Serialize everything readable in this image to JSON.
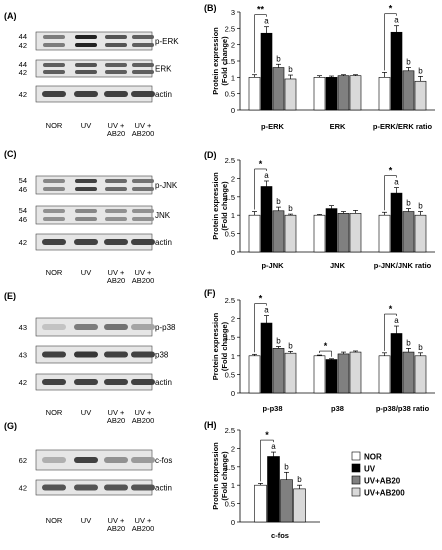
{
  "panels": {
    "A": {
      "label": "(A)",
      "mw": [
        {
          "top": "44",
          "bot": "42"
        },
        {
          "top": "44",
          "bot": "42"
        },
        {
          "top": "42"
        }
      ],
      "bands": [
        "p-ERK",
        "ERK",
        "actin"
      ],
      "lanes": [
        "NOR",
        "UV",
        "UV +\nAB20",
        "UV +\nAB200"
      ]
    },
    "C": {
      "label": "(C)",
      "mw": [
        {
          "top": "54",
          "bot": "46"
        },
        {
          "top": "54",
          "bot": "46"
        },
        {
          "top": "42"
        }
      ],
      "bands": [
        "p-JNK",
        "JNK",
        "actin"
      ],
      "lanes": [
        "NOR",
        "UV",
        "UV +\nAB20",
        "UV +\nAB200"
      ]
    },
    "E": {
      "label": "(E)",
      "mw": [
        {
          "top": "43"
        },
        {
          "top": "43"
        },
        {
          "top": "42"
        }
      ],
      "bands": [
        "p-p38",
        "p38",
        "actin"
      ],
      "lanes": [
        "NOR",
        "UV",
        "UV +\nAB20",
        "UV +\nAB200"
      ]
    },
    "G": {
      "label": "(G)",
      "mw": [
        {
          "top": "62"
        },
        {
          "top": "42"
        }
      ],
      "bands": [
        "c-fos",
        "actin"
      ],
      "lanes": [
        "NOR",
        "UV",
        "UV +\nAB20",
        "UV +\nAB200"
      ]
    }
  },
  "legend": {
    "entries": [
      "NOR",
      "UV",
      "UV+AB20",
      "UV+AB200"
    ],
    "colors": [
      "#ffffff",
      "#000000",
      "#808080",
      "#d9d9d9"
    ]
  },
  "chart_data": [
    {
      "panel": "(B)",
      "type": "bar",
      "ylabel": "Protein expression\n(Fold change)",
      "ylim": [
        0,
        3
      ],
      "yticks": [
        "0",
        "0.5",
        "1",
        "1.5",
        "2",
        "2.5",
        "3"
      ],
      "categories": [
        "p-ERK",
        "ERK",
        "p-ERK/ERK ratio"
      ],
      "series": [
        {
          "values": [
            1.0,
            1.0,
            1.0
          ],
          "errors": [
            0.08,
            0.05,
            0.15
          ]
        },
        {
          "values": [
            2.35,
            1.0,
            2.38
          ],
          "errors": [
            0.2,
            0.04,
            0.2
          ]
        },
        {
          "values": [
            1.3,
            1.05,
            1.2
          ],
          "errors": [
            0.1,
            0.03,
            0.1
          ]
        },
        {
          "values": [
            0.95,
            1.05,
            0.88
          ],
          "errors": [
            0.12,
            0.03,
            0.15
          ]
        }
      ],
      "annotations": [
        {
          "cat": 0,
          "sig": "**",
          "a": "a",
          "b2": "b",
          "b3": "b"
        },
        {
          "cat": 2,
          "sig": "*",
          "a": "a",
          "b2": "b",
          "b3": "b"
        }
      ]
    },
    {
      "panel": "(D)",
      "type": "bar",
      "ylabel": "Protein expression\n(Fold change)",
      "ylim": [
        0,
        2.5
      ],
      "yticks": [
        "0",
        "0.5",
        "1",
        "1.5",
        "2",
        "2.5"
      ],
      "categories": [
        "p-JNK",
        "JNK",
        "p-JNK/JNK ratio"
      ],
      "series": [
        {
          "values": [
            1.0,
            1.0,
            1.0
          ],
          "errors": [
            0.1,
            0.02,
            0.08
          ]
        },
        {
          "values": [
            1.78,
            1.18,
            1.6
          ],
          "errors": [
            0.15,
            0.08,
            0.15
          ]
        },
        {
          "values": [
            1.12,
            1.05,
            1.1
          ],
          "errors": [
            0.1,
            0.05,
            0.08
          ]
        },
        {
          "values": [
            1.0,
            1.05,
            1.0
          ],
          "errors": [
            0.03,
            0.08,
            0.1
          ]
        }
      ],
      "annotations": [
        {
          "cat": 0,
          "sig": "*",
          "a": "a",
          "b2": "b",
          "b3": "b"
        },
        {
          "cat": 2,
          "sig": "*",
          "a": "a",
          "b2": "b",
          "b3": "b"
        }
      ]
    },
    {
      "panel": "(F)",
      "type": "bar",
      "ylabel": "Protein expression\n(Fold change)",
      "ylim": [
        0,
        2.5
      ],
      "yticks": [
        "0",
        "0.5",
        "1",
        "1.5",
        "2",
        "2.5"
      ],
      "categories": [
        "p-p38",
        "p38",
        "p-p38/p38 ratio"
      ],
      "series": [
        {
          "values": [
            1.0,
            1.0,
            1.0
          ],
          "errors": [
            0.04,
            0.02,
            0.08
          ]
        },
        {
          "values": [
            1.88,
            0.9,
            1.6
          ],
          "errors": [
            0.2,
            0.02,
            0.2
          ]
        },
        {
          "values": [
            1.2,
            1.05,
            1.1
          ],
          "errors": [
            0.05,
            0.05,
            0.1
          ]
        },
        {
          "values": [
            1.07,
            1.1,
            1.0
          ],
          "errors": [
            0.05,
            0.03,
            0.08
          ]
        }
      ],
      "annotations": [
        {
          "cat": 0,
          "sig": "*",
          "a": "a",
          "b2": "b",
          "b3": "b"
        },
        {
          "cat": 1,
          "sig": "*"
        },
        {
          "cat": 2,
          "sig": "*",
          "a": "a",
          "b2": "b",
          "b3": "b"
        }
      ]
    },
    {
      "panel": "(H)",
      "type": "bar",
      "ylabel": "Protein expression\n(Fold change)",
      "ylim": [
        0,
        2.5
      ],
      "yticks": [
        "0",
        "0.5",
        "1",
        "1.5",
        "2",
        "2.5"
      ],
      "categories": [
        "c-fos"
      ],
      "series": [
        {
          "values": [
            1.0
          ],
          "errors": [
            0.05
          ]
        },
        {
          "values": [
            1.78
          ],
          "errors": [
            0.12
          ]
        },
        {
          "values": [
            1.15
          ],
          "errors": [
            0.2
          ]
        },
        {
          "values": [
            0.9
          ],
          "errors": [
            0.1
          ]
        }
      ],
      "annotations": [
        {
          "cat": 0,
          "sig": "*",
          "a": "a",
          "b2": "b",
          "b3": "b"
        }
      ]
    }
  ]
}
